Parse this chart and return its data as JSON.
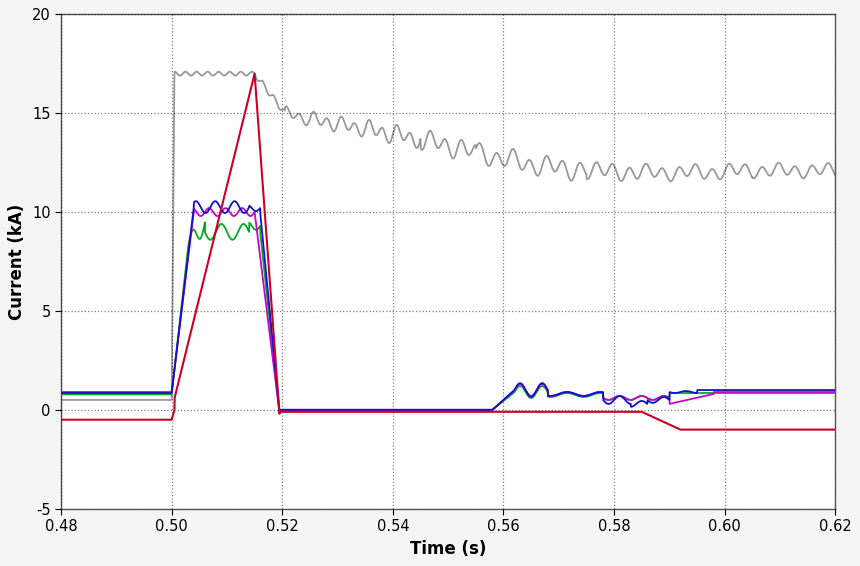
{
  "title": "",
  "xlabel": "Time (s)",
  "ylabel": "Current (kA)",
  "xlim": [
    0.48,
    0.62
  ],
  "ylim": [
    -5,
    20
  ],
  "yticks": [
    -5,
    0,
    5,
    10,
    15,
    20
  ],
  "xticks": [
    0.48,
    0.5,
    0.52,
    0.54,
    0.56,
    0.58,
    0.6,
    0.62
  ],
  "colors": {
    "red": "#cc0022",
    "blue": "#1111cc",
    "green": "#00aa22",
    "gray": "#999999",
    "purple": "#cc00cc"
  },
  "background": "#f5f5f5",
  "plot_bg": "#ffffff",
  "figsize": [
    8.6,
    5.66
  ],
  "dpi": 100
}
